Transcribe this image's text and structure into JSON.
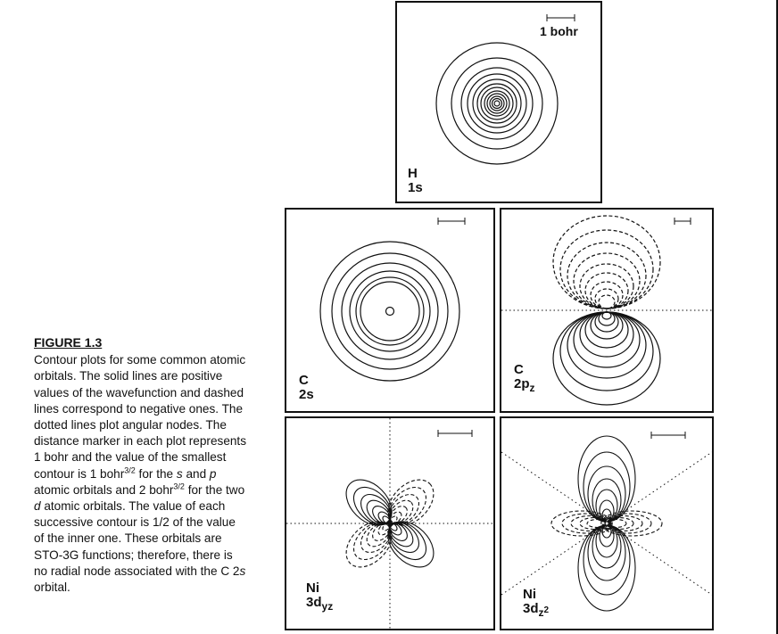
{
  "figure": {
    "caption_title": "FIGURE 1.3",
    "caption_p1": "Contour plots for some common atomic orbitals. The solid lines are positive values of the wavefunction and dashed lines correspond to negative ones. The dotted lines plot angular nodes. The distance marker in each plot represents 1 bohr and the value of the smallest contour is 1 bohr",
    "caption_exp1": "3/2",
    "caption_p2": " for the ",
    "caption_s": "s",
    "caption_and": " and ",
    "caption_p": "p",
    "caption_p3": " atomic orbitals and 2 bohr",
    "caption_exp2": "3/2",
    "caption_p4": " for the two ",
    "caption_d": "d",
    "caption_p5": " atomic orbitals. The value of each successive contour is 1/2 of the value of the inner one. These orbitals are STO-3G functions; therefore, there is no radial node associated with the C 2",
    "caption_s2": "s",
    "caption_p6": " orbital."
  },
  "panels": {
    "h1s": {
      "element": "H",
      "orbital": "1s",
      "marker_label": "1 bohr"
    },
    "c2s": {
      "element": "C",
      "orbital": "2s"
    },
    "c2pz": {
      "element": "C",
      "orbital_main": "2p",
      "orbital_sub": "z"
    },
    "ni3dyz": {
      "element": "Ni",
      "orbital_main": "3d",
      "orbital_sub": "yz"
    },
    "ni3dz2": {
      "element": "Ni",
      "orbital_main": "3d",
      "orbital_sub": "z",
      "orbital_sup": "2"
    }
  },
  "styles": {
    "line_color": "#111111",
    "background": "#ffffff"
  }
}
